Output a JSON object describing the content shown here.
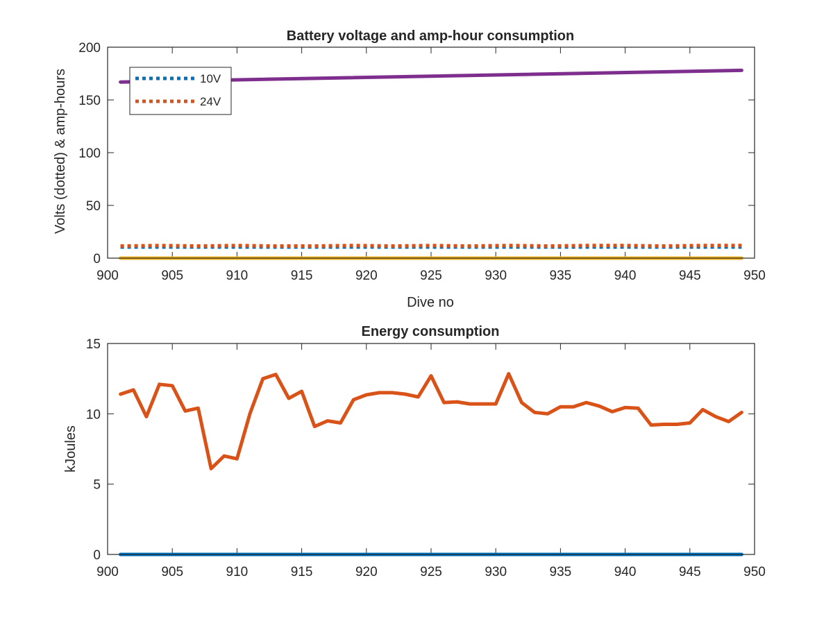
{
  "window": {
    "title": ""
  },
  "chart_data": [
    {
      "type": "line",
      "title": "Battery voltage and amp-hour consumption",
      "xlabel": "Dive no",
      "ylabel": "Volts (dotted) & amp-hours",
      "xlim": [
        900,
        950
      ],
      "ylim": [
        0,
        200
      ],
      "xticks": [
        900,
        905,
        910,
        915,
        920,
        925,
        930,
        935,
        940,
        945,
        950
      ],
      "yticks": [
        0,
        50,
        100,
        150,
        200
      ],
      "grid": false,
      "legend": {
        "placement": "top-left",
        "entries": [
          "10V",
          "24V"
        ]
      },
      "series": [
        {
          "name": "10V",
          "style": "dotted",
          "color": "#0072BD",
          "x": [
            901,
            949
          ],
          "y": [
            10.5,
            10.5
          ]
        },
        {
          "name": "24V",
          "style": "dotted",
          "color": "#D95319",
          "x": [
            901,
            904,
            907,
            910,
            913,
            916,
            919,
            922,
            925,
            928,
            931,
            934,
            937,
            940,
            943,
            946,
            949
          ],
          "y": [
            11.5,
            12,
            11.5,
            12,
            11.5,
            11.5,
            12,
            11.5,
            12,
            11.5,
            12,
            11.5,
            12,
            12,
            11.5,
            12,
            12
          ]
        },
        {
          "style": "solid",
          "color": "#7E2F8E",
          "x": [
            901,
            949
          ],
          "y": [
            167,
            178
          ]
        },
        {
          "style": "solid",
          "color": "#EDB120",
          "x": [
            901,
            949
          ],
          "y": [
            0,
            0
          ]
        }
      ]
    },
    {
      "type": "line",
      "title": "Energy consumption",
      "xlabel": "",
      "ylabel": "kJoules",
      "xlim": [
        900,
        950
      ],
      "ylim": [
        0,
        15
      ],
      "xticks": [
        900,
        905,
        910,
        915,
        920,
        925,
        930,
        935,
        940,
        945,
        950
      ],
      "yticks": [
        0,
        5,
        10,
        15
      ],
      "grid": false,
      "series": [
        {
          "style": "solid",
          "color": "#0072BD",
          "x": [
            901,
            949
          ],
          "y": [
            0,
            0
          ]
        },
        {
          "style": "solid",
          "color": "#D95319",
          "x": [
            901,
            902,
            903,
            904,
            905,
            906,
            907,
            908,
            909,
            910,
            911,
            912,
            913,
            914,
            915,
            916,
            917,
            918,
            919,
            920,
            921,
            922,
            923,
            924,
            925,
            926,
            927,
            928,
            929,
            930,
            931,
            932,
            933,
            934,
            935,
            936,
            937,
            938,
            939,
            940,
            941,
            942,
            943,
            944,
            945,
            946,
            947,
            948,
            949
          ],
          "y": [
            11.4,
            11.7,
            9.8,
            12.1,
            12.0,
            10.2,
            10.4,
            6.1,
            7.0,
            6.8,
            10.0,
            12.5,
            12.8,
            11.1,
            11.6,
            9.1,
            9.5,
            9.35,
            11.0,
            11.35,
            11.5,
            11.5,
            11.4,
            11.2,
            12.7,
            10.8,
            10.85,
            10.7,
            10.7,
            10.7,
            12.85,
            10.8,
            10.1,
            10.0,
            10.5,
            10.5,
            10.8,
            10.55,
            10.15,
            10.45,
            10.4,
            9.2,
            9.25,
            9.25,
            9.35,
            10.3,
            9.8,
            9.45,
            10.1
          ]
        }
      ]
    }
  ]
}
